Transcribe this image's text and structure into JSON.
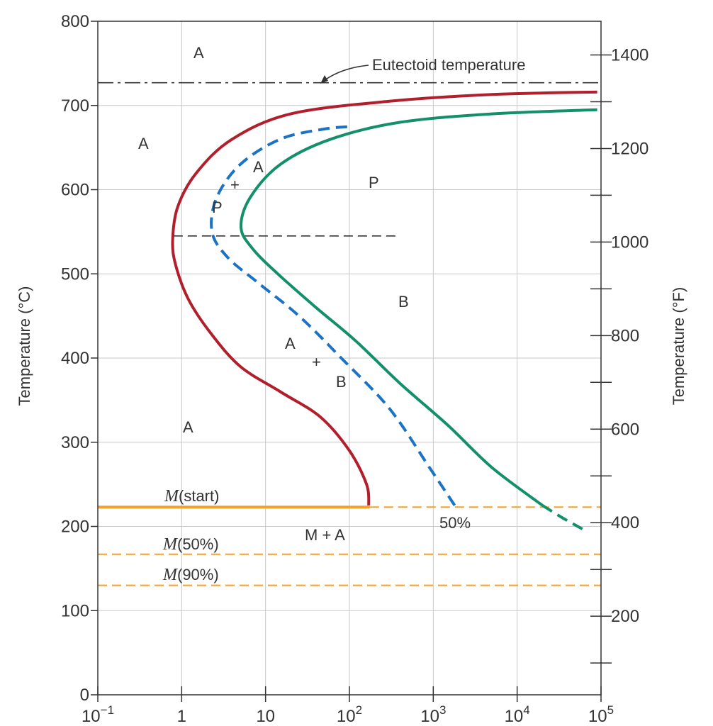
{
  "chart_data": {
    "type": "line",
    "title": "",
    "x_axis": {
      "scale": "log",
      "range": [
        0.1,
        100000
      ],
      "ticks": [
        {
          "value": 0.1,
          "base": "10",
          "exp": "−1"
        },
        {
          "value": 1,
          "base": "1",
          "exp": ""
        },
        {
          "value": 10,
          "base": "10",
          "exp": ""
        },
        {
          "value": 100,
          "base": "10",
          "exp": "2"
        },
        {
          "value": 1000,
          "base": "10",
          "exp": "3"
        },
        {
          "value": 10000,
          "base": "10",
          "exp": "4"
        },
        {
          "value": 100000,
          "base": "10",
          "exp": "5"
        }
      ]
    },
    "y_axis_left": {
      "label": "Temperature (°C)",
      "range": [
        0,
        800
      ],
      "ticks": [
        0,
        100,
        200,
        300,
        400,
        500,
        600,
        700,
        800
      ]
    },
    "y_axis_right": {
      "label": "Temperature (°F)",
      "ticks": [
        200,
        400,
        600,
        800,
        1000,
        1200,
        1400
      ]
    },
    "grid": true,
    "series": [
      {
        "color": "#b01f2b",
        "style": "solid",
        "points": [
          [
            170,
            225
          ],
          [
            160,
            250
          ],
          [
            100,
            290
          ],
          [
            45,
            330
          ],
          [
            15,
            360
          ],
          [
            5,
            390
          ],
          [
            2.2,
            430
          ],
          [
            1.2,
            470
          ],
          [
            0.85,
            510
          ],
          [
            0.78,
            540
          ],
          [
            0.9,
            580
          ],
          [
            1.5,
            620
          ],
          [
            4,
            660
          ],
          [
            20,
            690
          ],
          [
            300,
            705
          ],
          [
            5000,
            713
          ],
          [
            90000,
            716
          ]
        ]
      },
      {
        "color": "#1a73c4",
        "style": "dashed",
        "points": [
          [
            1800,
            225
          ],
          [
            900,
            270
          ],
          [
            300,
            340
          ],
          [
            80,
            400
          ],
          [
            25,
            450
          ],
          [
            8,
            490
          ],
          [
            3.5,
            520
          ],
          [
            2.3,
            550
          ],
          [
            2.6,
            590
          ],
          [
            5,
            630
          ],
          [
            15,
            660
          ],
          [
            50,
            672
          ],
          [
            110,
            675
          ]
        ]
      },
      {
        "color": "#13906b",
        "style": "solid",
        "points": [
          [
            20000,
            225
          ],
          [
            5000,
            270
          ],
          [
            1500,
            320
          ],
          [
            400,
            370
          ],
          [
            120,
            420
          ],
          [
            40,
            460
          ],
          [
            14,
            500
          ],
          [
            7,
            530
          ],
          [
            5.1,
            555
          ],
          [
            6.5,
            590
          ],
          [
            15,
            630
          ],
          [
            60,
            660
          ],
          [
            400,
            680
          ],
          [
            5000,
            690
          ],
          [
            90000,
            695
          ]
        ]
      },
      {
        "color": "#13906b",
        "style": "dashed",
        "points": [
          [
            20000,
            225
          ],
          [
            35000,
            210
          ],
          [
            60000,
            197
          ]
        ]
      }
    ],
    "reference_lines": [
      {
        "y": 727,
        "x_range": [
          0.1,
          100000
        ],
        "color": "#333333",
        "style": "dashdot"
      },
      {
        "y": 545,
        "x_range": [
          0.8,
          400
        ],
        "color": "#333333",
        "style": "dashed"
      },
      {
        "y": 223,
        "x_range": [
          0.1,
          175
        ],
        "color": "#f5a02a",
        "style": "solid"
      },
      {
        "y": 223,
        "x_range": [
          175,
          100000
        ],
        "color": "#f5a02a",
        "style": "dashed"
      },
      {
        "y": 167,
        "x_range": [
          0.1,
          100000
        ],
        "color": "#f5a02a",
        "style": "dashed"
      },
      {
        "y": 130,
        "x_range": [
          0.1,
          100000
        ],
        "color": "#f5a02a",
        "style": "dashed"
      }
    ],
    "labels": {
      "eutectoid": "Eutectoid temperature",
      "a": "A",
      "p": "P",
      "b": "B",
      "plus": "+",
      "m_plus_a": "M + A",
      "fifty_percent": "50%",
      "m_letter": "M",
      "m_start": "(start)",
      "m_50": "(50%)",
      "m_90": "(90%)"
    }
  }
}
